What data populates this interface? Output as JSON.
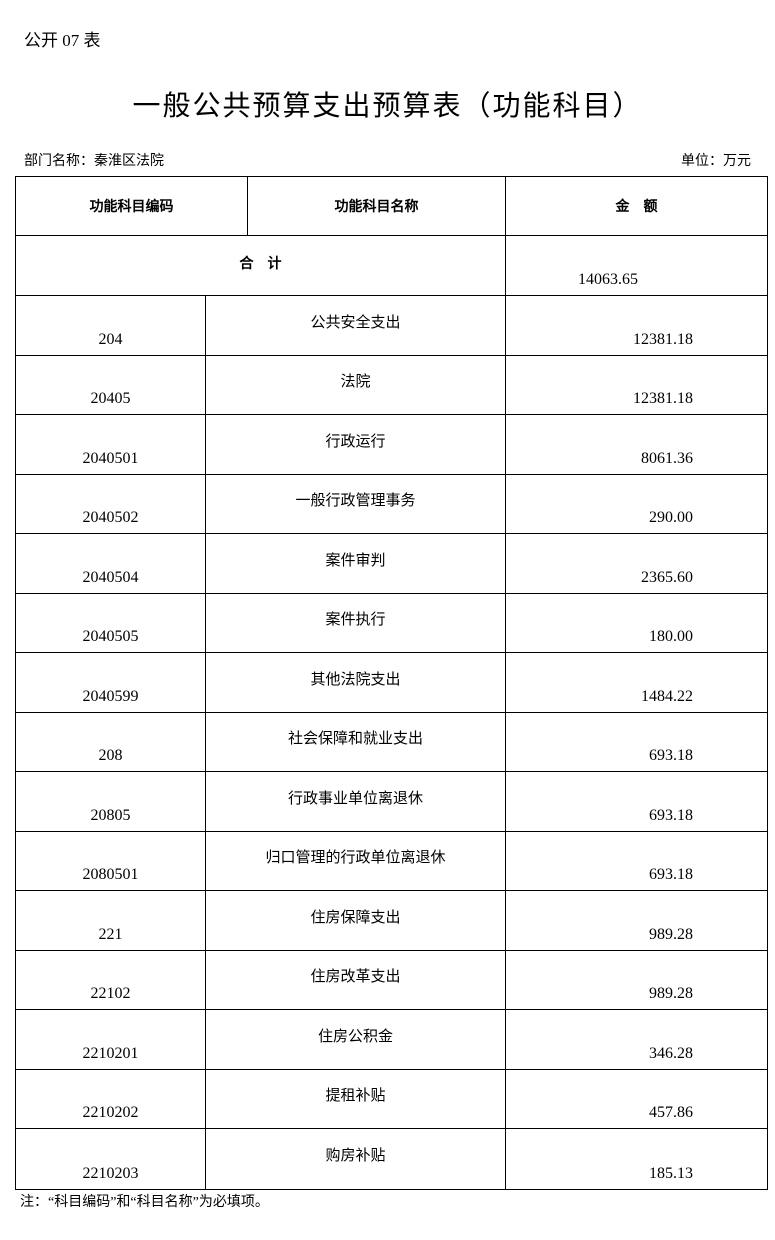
{
  "form_no": "公开 07 表",
  "title": "一般公共预算支出预算表（功能科目）",
  "department": "部门名称：秦淮区法院",
  "unit": "单位：万元",
  "table": {
    "headers": [
      "功能科目编码",
      "功能科目名称",
      "金　额"
    ],
    "total_label": "合　计",
    "total_amount": "14063.65",
    "rows": [
      {
        "code": "204",
        "name": "公共安全支出",
        "amount": "12381.18"
      },
      {
        "code": "20405",
        "name": "法院",
        "amount": "12381.18"
      },
      {
        "code": "2040501",
        "name": "行政运行",
        "amount": "8061.36"
      },
      {
        "code": "2040502",
        "name": "一般行政管理事务",
        "amount": "290.00"
      },
      {
        "code": "2040504",
        "name": "案件审判",
        "amount": "2365.60"
      },
      {
        "code": "2040505",
        "name": "案件执行",
        "amount": "180.00"
      },
      {
        "code": "2040599",
        "name": "其他法院支出",
        "amount": "1484.22"
      },
      {
        "code": "208",
        "name": "社会保障和就业支出",
        "amount": "693.18"
      },
      {
        "code": "20805",
        "name": "行政事业单位离退休",
        "amount": "693.18"
      },
      {
        "code": "2080501",
        "name": "归口管理的行政单位离退休",
        "amount": "693.18"
      },
      {
        "code": "221",
        "name": "住房保障支出",
        "amount": "989.28"
      },
      {
        "code": "22102",
        "name": "住房改革支出",
        "amount": "989.28"
      },
      {
        "code": "2210201",
        "name": "住房公积金",
        "amount": "346.28"
      },
      {
        "code": "2210202",
        "name": "提租补贴",
        "amount": "457.86"
      },
      {
        "code": "2210203",
        "name": "购房补贴",
        "amount": "185.13"
      }
    ]
  },
  "note": "注：“科目编码”和“科目名称”为必填项。"
}
